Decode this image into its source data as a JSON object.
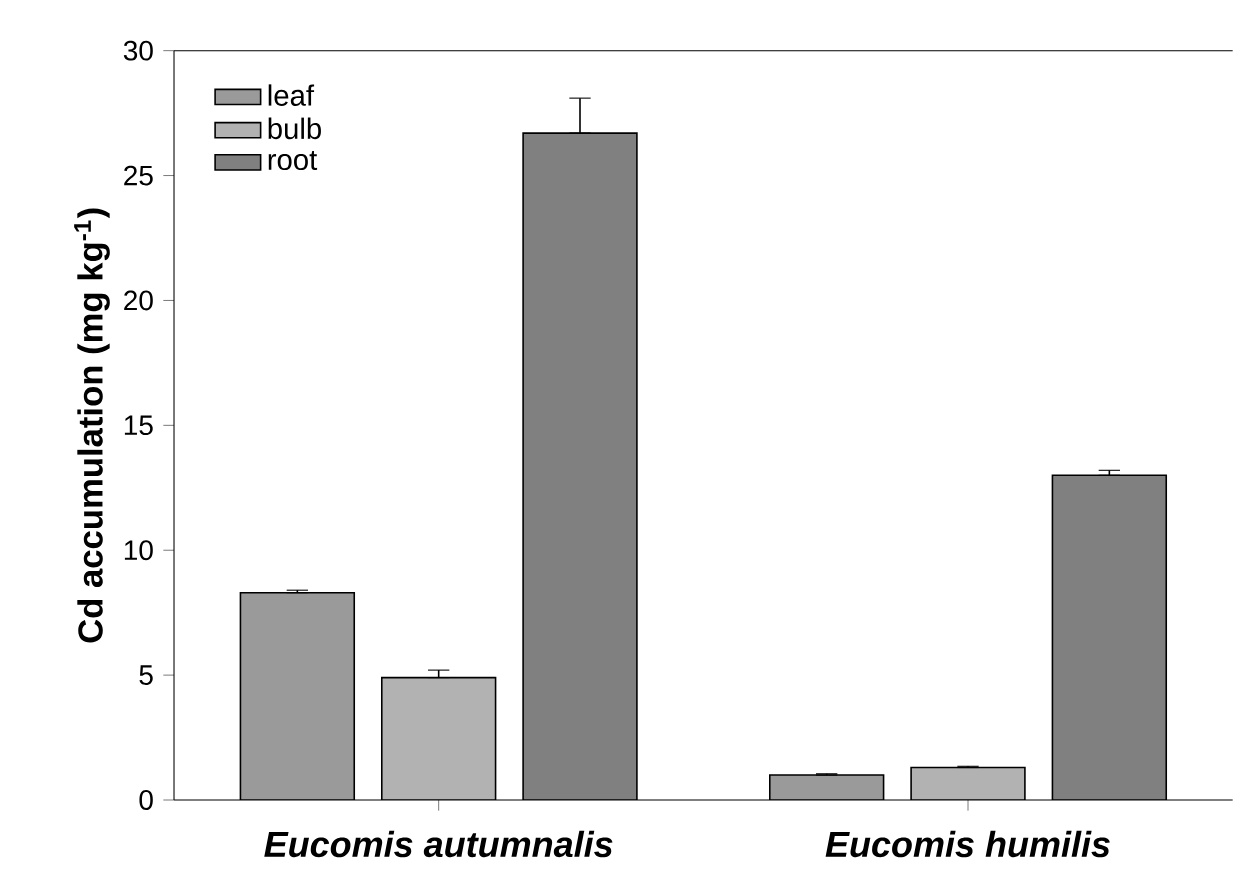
{
  "chart_data": {
    "type": "bar",
    "ylabel": "Cd accumulation (mg kg$^{-1}$)",
    "categories": [
      "Eucomis autumnalis",
      "Eucomis humilis"
    ],
    "series": [
      {
        "name": "leaf",
        "color": "#9a9a9a",
        "values": [
          8.3,
          1.0
        ],
        "errors": [
          [
            8.3,
            8.4
          ],
          [
            1.0,
            1.05
          ]
        ]
      },
      {
        "name": "bulb",
        "color": "#b2b2b2",
        "values": [
          4.9,
          1.3
        ],
        "errors": [
          [
            4.9,
            5.2
          ],
          [
            1.3,
            1.35
          ]
        ]
      },
      {
        "name": "root",
        "color": "#808080",
        "values": [
          26.7,
          13.0
        ],
        "errors": [
          [
            26.7,
            28.1
          ],
          [
            13.0,
            13.2
          ]
        ]
      }
    ],
    "ylim": [
      0,
      30
    ],
    "yticks": [
      0,
      5,
      10,
      15,
      20,
      25,
      30
    ],
    "grid": false,
    "legend": "top left"
  }
}
